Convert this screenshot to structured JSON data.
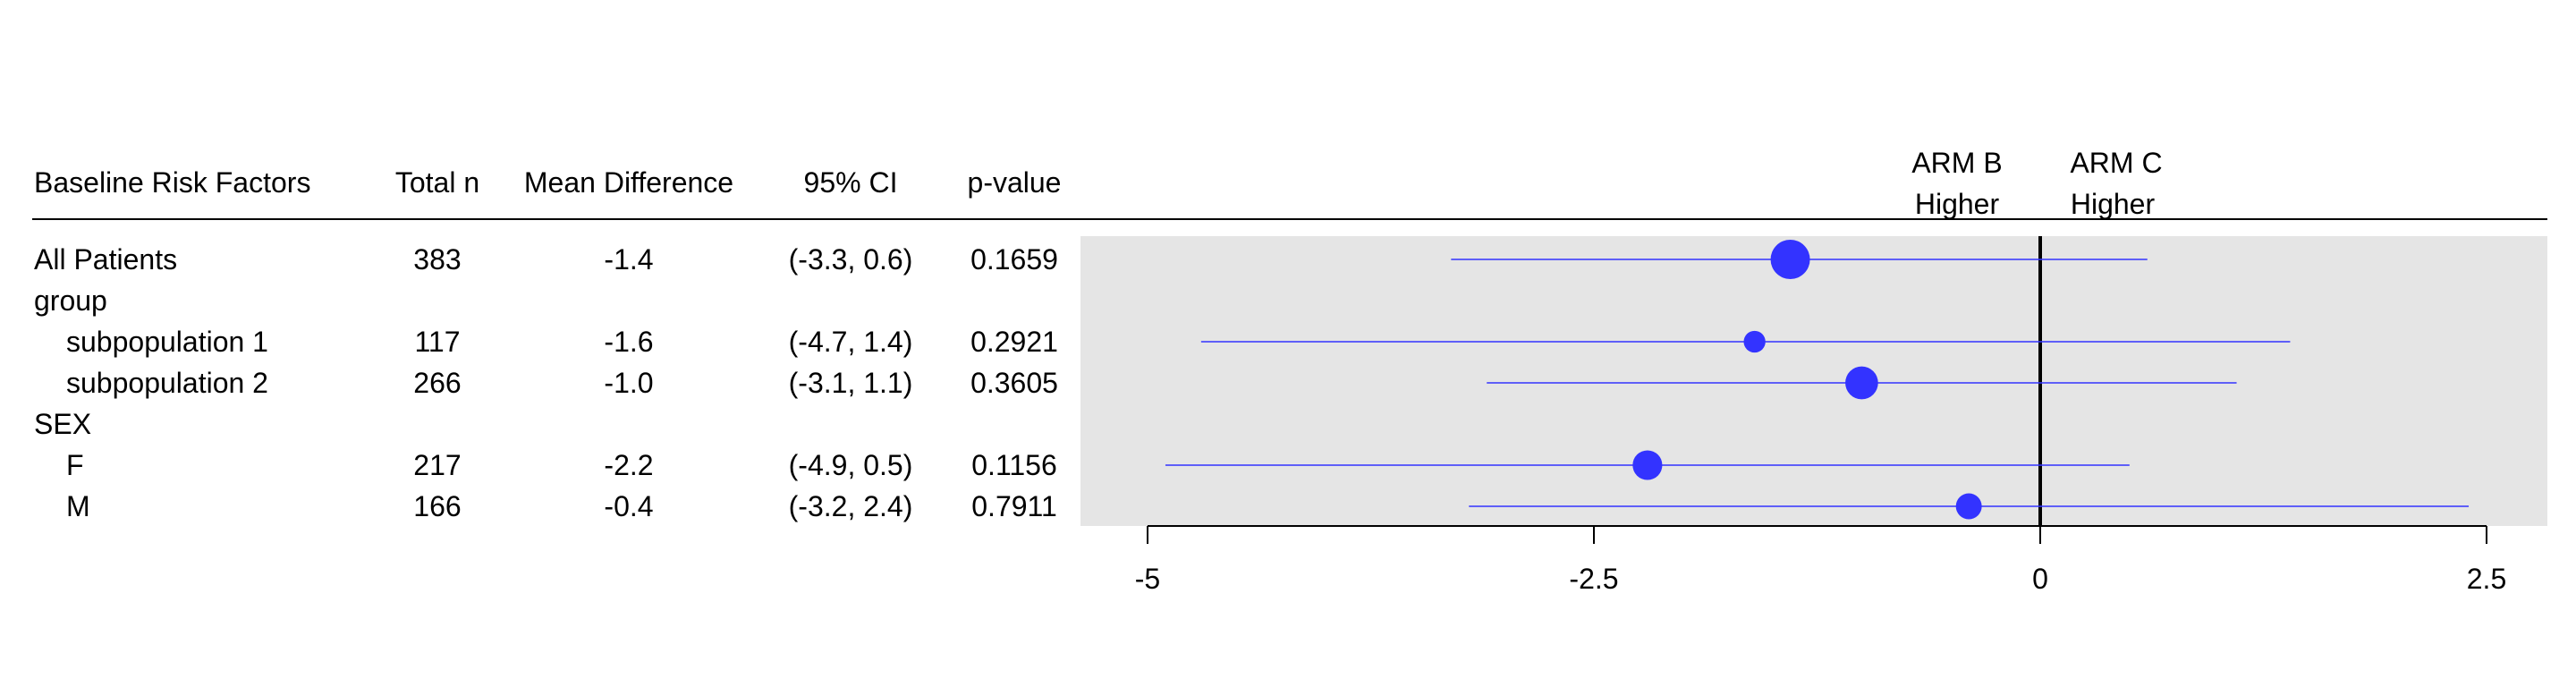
{
  "table": {
    "headers": {
      "factor": "Baseline Risk Factors",
      "total_n": "Total n",
      "mean_diff": "Mean Difference",
      "ci": "95% CI",
      "pvalue": "p-value"
    },
    "rows": [
      {
        "label": "All Patients",
        "indent": false,
        "n": "383",
        "diff": "-1.4",
        "ci": "(-3.3, 0.6)",
        "p": "0.1659"
      },
      {
        "label": "group",
        "indent": false,
        "n": "",
        "diff": "",
        "ci": "",
        "p": ""
      },
      {
        "label": "subpopulation 1",
        "indent": true,
        "n": "117",
        "diff": "-1.6",
        "ci": "(-4.7, 1.4)",
        "p": "0.2921"
      },
      {
        "label": "subpopulation 2",
        "indent": true,
        "n": "266",
        "diff": "-1.0",
        "ci": "(-3.1, 1.1)",
        "p": "0.3605"
      },
      {
        "label": "SEX",
        "indent": false,
        "n": "",
        "diff": "",
        "ci": "",
        "p": ""
      },
      {
        "label": "F",
        "indent": true,
        "n": "217",
        "diff": "-2.2",
        "ci": "(-4.9, 0.5)",
        "p": "0.1156"
      },
      {
        "label": "M",
        "indent": true,
        "n": "166",
        "diff": "-0.4",
        "ci": "(-3.2, 2.4)",
        "p": "0.7911"
      }
    ]
  },
  "arm_labels": {
    "left_line1": "ARM B",
    "left_line2": "Higher",
    "right_line1": "ARM C",
    "right_line2": "Higher"
  },
  "chart_data": {
    "type": "scatter",
    "subtype": "forest",
    "xlim": [
      -5.4,
      2.9
    ],
    "xticks": [
      -5,
      -2.5,
      0,
      2.5
    ],
    "xtick_labels": [
      "-5",
      "-2.5",
      "0",
      "2.5"
    ],
    "reference_line": 0,
    "grid": false,
    "rows": [
      {
        "label": "All Patients",
        "estimate": -1.4,
        "lower": -3.3,
        "upper": 0.6,
        "n": 383
      },
      {
        "label": "group",
        "estimate": null,
        "lower": null,
        "upper": null,
        "n": null
      },
      {
        "label": "subpopulation 1",
        "estimate": -1.6,
        "lower": -4.7,
        "upper": 1.4,
        "n": 117
      },
      {
        "label": "subpopulation 2",
        "estimate": -1.0,
        "lower": -3.1,
        "upper": 1.1,
        "n": 266
      },
      {
        "label": "SEX",
        "estimate": null,
        "lower": null,
        "upper": null,
        "n": null
      },
      {
        "label": "F",
        "estimate": -2.2,
        "lower": -4.9,
        "upper": 0.5,
        "n": 217
      },
      {
        "label": "M",
        "estimate": -0.4,
        "lower": -3.2,
        "upper": 2.4,
        "n": 166
      }
    ],
    "colors": {
      "marker": "#3333ff",
      "ci_line": "#3333ff",
      "panel_bg": "#e5e5e5",
      "reference": "#000000"
    }
  }
}
